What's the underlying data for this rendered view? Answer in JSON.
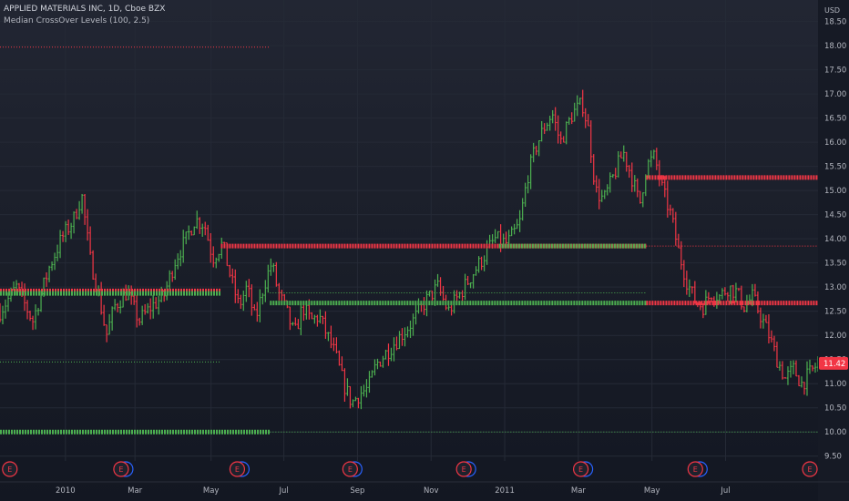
{
  "header": {
    "title": "APPLIED MATERIALS INC, 1D, Cboe BZX",
    "indicator": "Median CrossOver Levels (100, 2.5)"
  },
  "colors": {
    "background": "#1a1e29",
    "up": "#26a69a",
    "up_bar": "#4caf50",
    "down": "#f23645",
    "level_green": "#4caf50",
    "level_red": "#f23645",
    "axis_text": "#b2b5be",
    "grid": "#252a36",
    "event_marker": "#f23645"
  },
  "chart_data": {
    "type": "ohlc",
    "currency": "USD",
    "yticks": [
      "18.50",
      "18.00",
      "17.50",
      "17.00",
      "16.50",
      "16.00",
      "15.50",
      "15.00",
      "14.50",
      "14.00",
      "13.50",
      "13.00",
      "12.50",
      "12.00",
      "11.50",
      "11.00",
      "10.50",
      "10.00",
      "9.50"
    ],
    "ylim": [
      9.4,
      18.72
    ],
    "xlabels": [
      {
        "label": "2010",
        "t": 0.08
      },
      {
        "label": "Mar",
        "t": 0.165
      },
      {
        "label": "May",
        "t": 0.258
      },
      {
        "label": "Jul",
        "t": 0.347
      },
      {
        "label": "Sep",
        "t": 0.437
      },
      {
        "label": "Nov",
        "t": 0.527
      },
      {
        "label": "2011",
        "t": 0.617
      },
      {
        "label": "Mar",
        "t": 0.707
      },
      {
        "label": "May",
        "t": 0.797
      },
      {
        "label": "Jul",
        "t": 0.887
      }
    ],
    "last_price": "11.42",
    "price_path": [
      [
        0.0,
        12.5
      ],
      [
        0.02,
        13.0
      ],
      [
        0.04,
        12.3
      ],
      [
        0.06,
        13.4
      ],
      [
        0.075,
        14.0
      ],
      [
        0.09,
        14.4
      ],
      [
        0.1,
        14.9
      ],
      [
        0.11,
        13.6
      ],
      [
        0.12,
        12.9
      ],
      [
        0.13,
        12.0
      ],
      [
        0.14,
        12.6
      ],
      [
        0.155,
        12.9
      ],
      [
        0.17,
        12.3
      ],
      [
        0.185,
        12.6
      ],
      [
        0.2,
        12.8
      ],
      [
        0.215,
        13.6
      ],
      [
        0.228,
        14.0
      ],
      [
        0.238,
        14.4
      ],
      [
        0.25,
        14.3
      ],
      [
        0.26,
        13.6
      ],
      [
        0.272,
        13.9
      ],
      [
        0.282,
        13.2
      ],
      [
        0.292,
        12.6
      ],
      [
        0.302,
        13.0
      ],
      [
        0.312,
        12.3
      ],
      [
        0.322,
        13.0
      ],
      [
        0.332,
        13.5
      ],
      [
        0.34,
        12.9
      ],
      [
        0.35,
        12.5
      ],
      [
        0.36,
        12.0
      ],
      [
        0.37,
        12.6
      ],
      [
        0.38,
        12.3
      ],
      [
        0.39,
        12.4
      ],
      [
        0.4,
        12.0
      ],
      [
        0.41,
        11.6
      ],
      [
        0.42,
        11.0
      ],
      [
        0.43,
        10.6
      ],
      [
        0.44,
        10.8
      ],
      [
        0.45,
        10.9
      ],
      [
        0.46,
        11.4
      ],
      [
        0.475,
        11.7
      ],
      [
        0.49,
        12.0
      ],
      [
        0.505,
        12.3
      ],
      [
        0.52,
        12.7
      ],
      [
        0.535,
        13.0
      ],
      [
        0.548,
        12.5
      ],
      [
        0.56,
        12.8
      ],
      [
        0.575,
        13.2
      ],
      [
        0.59,
        13.6
      ],
      [
        0.605,
        14.0
      ],
      [
        0.62,
        13.9
      ],
      [
        0.635,
        14.3
      ],
      [
        0.645,
        15.3
      ],
      [
        0.655,
        15.9
      ],
      [
        0.665,
        16.3
      ],
      [
        0.675,
        16.6
      ],
      [
        0.685,
        16.0
      ],
      [
        0.7,
        16.6
      ],
      [
        0.712,
        16.8
      ],
      [
        0.72,
        16.2
      ],
      [
        0.728,
        15.0
      ],
      [
        0.738,
        14.8
      ],
      [
        0.75,
        15.3
      ],
      [
        0.762,
        15.8
      ],
      [
        0.772,
        15.3
      ],
      [
        0.782,
        14.7
      ],
      [
        0.79,
        15.5
      ],
      [
        0.8,
        15.7
      ],
      [
        0.81,
        15.0
      ],
      [
        0.82,
        14.5
      ],
      [
        0.83,
        13.7
      ],
      [
        0.84,
        13.1
      ],
      [
        0.85,
        12.7
      ],
      [
        0.86,
        12.6
      ],
      [
        0.87,
        12.9
      ],
      [
        0.88,
        12.8
      ],
      [
        0.89,
        13.0
      ],
      [
        0.9,
        12.9
      ],
      [
        0.91,
        12.6
      ],
      [
        0.92,
        12.8
      ],
      [
        0.93,
        12.4
      ],
      [
        0.94,
        12.0
      ],
      [
        0.95,
        11.5
      ],
      [
        0.96,
        11.1
      ],
      [
        0.97,
        11.3
      ],
      [
        0.98,
        11.0
      ],
      [
        1.0,
        11.42
      ]
    ],
    "levels": [
      {
        "color": "red",
        "y": 17.97,
        "t0": 0.0,
        "t1": 0.33,
        "style": "dotted"
      },
      {
        "color": "red",
        "y": 12.92,
        "t0": 0.0,
        "t1": 0.27,
        "style": "thick"
      },
      {
        "color": "green",
        "y": 12.87,
        "t0": 0.0,
        "t1": 0.27,
        "style": "thick"
      },
      {
        "color": "green",
        "y": 11.45,
        "t0": 0.0,
        "t1": 0.27,
        "style": "dotted"
      },
      {
        "color": "green",
        "y": 10.0,
        "t0": 0.0,
        "t1": 0.33,
        "style": "thick"
      },
      {
        "color": "green",
        "y": 10.0,
        "t0": 0.33,
        "t1": 1.0,
        "style": "dotted"
      },
      {
        "color": "red",
        "y": 13.85,
        "t0": 0.27,
        "t1": 0.79,
        "style": "thick"
      },
      {
        "color": "red",
        "y": 13.85,
        "t0": 0.79,
        "t1": 1.0,
        "style": "dotted"
      },
      {
        "color": "green",
        "y": 13.85,
        "t0": 0.61,
        "t1": 0.79,
        "style": "thick"
      },
      {
        "color": "green",
        "y": 12.88,
        "t0": 0.33,
        "t1": 0.79,
        "style": "dotted"
      },
      {
        "color": "green",
        "y": 12.67,
        "t0": 0.33,
        "t1": 0.79,
        "style": "thick"
      },
      {
        "color": "red",
        "y": 12.67,
        "t0": 0.79,
        "t1": 1.0,
        "style": "thick"
      },
      {
        "color": "red",
        "y": 15.27,
        "t0": 0.79,
        "t1": 1.0,
        "style": "thick"
      }
    ],
    "events": [
      {
        "label": "E",
        "t": 0.012
      },
      {
        "label": "E",
        "t": 0.148,
        "double": true
      },
      {
        "label": "E",
        "t": 0.29,
        "double": true
      },
      {
        "label": "E",
        "t": 0.428,
        "double": true
      },
      {
        "label": "E",
        "t": 0.567,
        "double": true
      },
      {
        "label": "E",
        "t": 0.71,
        "double": true
      },
      {
        "label": "E",
        "t": 0.85,
        "double": true
      },
      {
        "label": "E",
        "t": 0.99
      }
    ]
  }
}
